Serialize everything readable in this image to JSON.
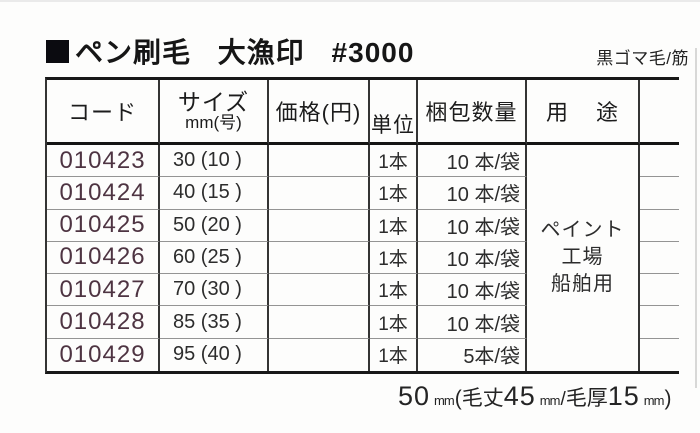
{
  "header": {
    "title": "ペン刷毛 大漁印 #3000",
    "material_tag": "黒ゴマ毛/筋"
  },
  "table": {
    "headers": {
      "code": "コード",
      "size_line1": "サイズ",
      "size_line2": "mm(号)",
      "price": "価格(円)",
      "unit": "単位",
      "pack_qty": "梱包数量",
      "use_char1": "用",
      "use_char2": "途"
    },
    "rows": [
      {
        "code": "010423",
        "size": "30 (10 )",
        "price": "",
        "unit": "1本",
        "pack": "10 本/袋"
      },
      {
        "code": "010424",
        "size": "40 (15 )",
        "price": "",
        "unit": "1本",
        "pack": "10 本/袋"
      },
      {
        "code": "010425",
        "size": "50 (20 )",
        "price": "",
        "unit": "1本",
        "pack": "10 本/袋"
      },
      {
        "code": "010426",
        "size": "60 (25 )",
        "price": "",
        "unit": "1本",
        "pack": "10 本/袋"
      },
      {
        "code": "010427",
        "size": "70 (30 )",
        "price": "",
        "unit": "1本",
        "pack": "10 本/袋"
      },
      {
        "code": "010428",
        "size": "85 (35 )",
        "price": "",
        "unit": "1本",
        "pack": "10 本/袋"
      },
      {
        "code": "010429",
        "size": "95 (40 )",
        "price": "",
        "unit": "1本",
        "pack": "5本/袋"
      }
    ],
    "use_lines": [
      "ペイント",
      "工場",
      "船舶用"
    ]
  },
  "footnote": {
    "parts": [
      "50",
      "mm",
      "(",
      "毛丈",
      "45",
      "mm",
      "/",
      "毛厚",
      "15",
      "mm",
      ")"
    ]
  },
  "colors": {
    "code_text": "#4e3442",
    "ink": "#1d1d1d",
    "border_dark": "#343434",
    "border_light": "#949494"
  }
}
